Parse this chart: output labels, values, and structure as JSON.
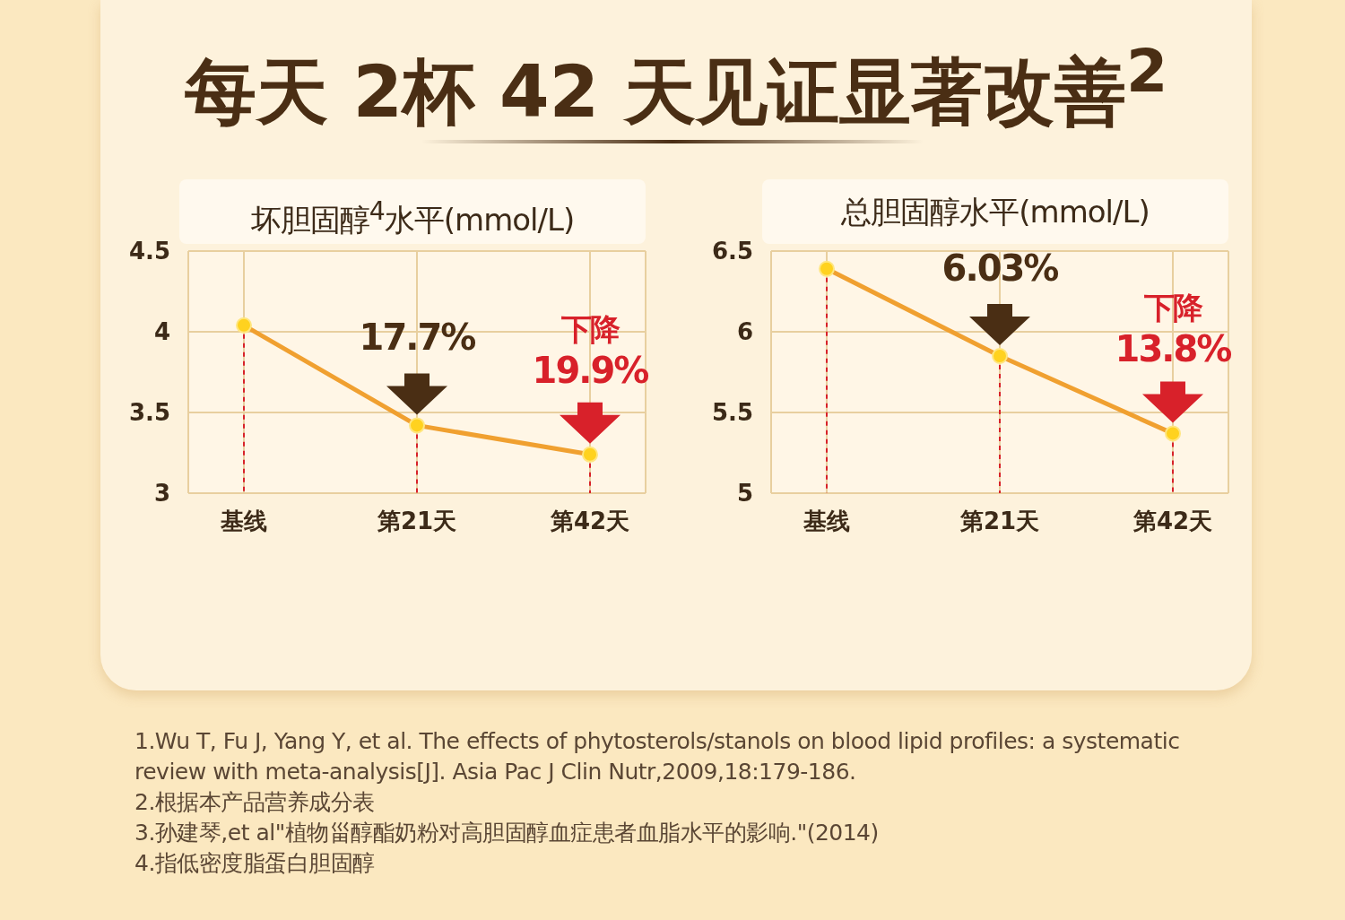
{
  "chart_data": [
    {
      "type": "line",
      "title": "每天 2杯 42 天见证显著改善$^{2}$",
      "subtitle": "坏胆固醇$^{4}$水平(mmol/L)",
      "categories": [
        "基线",
        "第21天",
        "第42天"
      ],
      "series": [
        {
          "color": "#f0a030",
          "values": [
            4.04,
            3.42,
            3.24
          ]
        }
      ],
      "ylim": [
        3,
        4.5
      ],
      "yticks": [
        3,
        3.5,
        4,
        4.5
      ],
      "grid": true,
      "marker": "circle",
      "ref_lines": [
        {
          "axis": "x",
          "value": "基线",
          "color": "#d8212a",
          "line_style": "dashed"
        },
        {
          "axis": "x",
          "value": "第21天",
          "color": "#d8212a",
          "line_style": "dashed"
        },
        {
          "axis": "x",
          "value": "第42天",
          "color": "#d8212a",
          "line_style": "dashed"
        }
      ],
      "annotations": [
        {
          "text": "17.7%",
          "x": "第21天",
          "y": 3.42
        },
        {
          "text": "下降 19.9%",
          "x": "第42天",
          "y": 3.24
        }
      ]
    },
    {
      "type": "line",
      "title": "总胆固醇水平(mmol/L)",
      "categories": [
        "基线",
        "第21天",
        "第42天"
      ],
      "series": [
        {
          "color": "#f0a030",
          "values": [
            6.39,
            5.85,
            5.37
          ]
        }
      ],
      "ylim": [
        5,
        6.5
      ],
      "yticks": [
        5,
        5.5,
        6,
        6.5
      ],
      "grid": true,
      "marker": "circle",
      "ref_lines": [
        {
          "axis": "x",
          "value": "基线",
          "color": "#d8212a",
          "line_style": "dashed"
        },
        {
          "axis": "x",
          "value": "第21天",
          "color": "#d8212a",
          "line_style": "dashed"
        },
        {
          "axis": "x",
          "value": "第42天",
          "color": "#d8212a",
          "line_style": "dashed"
        }
      ],
      "annotations": [
        {
          "text": "6.03%",
          "x": "第21天",
          "y": 5.85
        },
        {
          "text": "下降 13.8%",
          "x": "第42天",
          "y": 5.37
        },
        "1.Wu T, Fu J, Yang Y, et al. The effects of phytosterols/stanols on blood lipid profiles: a systematic review with meta-analysis[J]. Asia Pac J Clin Nutr,2009,18:179-186.",
        "2.根据本产品营养成分表",
        "3.孙建琴,et al\"植物甾醇酯奶粉对高胆固醇血症患者血脂水平的影响.\"(2014)",
        "4.指低密度脂蛋白胆固醇"
      ]
    }
  ]
}
